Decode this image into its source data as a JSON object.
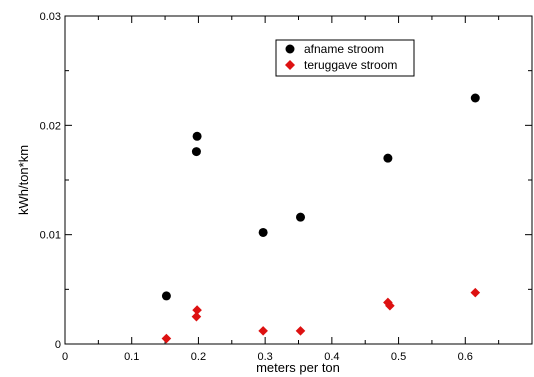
{
  "chart_data": {
    "type": "scatter",
    "xlabel": "meters per ton",
    "ylabel": "kWh/ton*km",
    "xlim": [
      0,
      0.7
    ],
    "ylim": [
      0,
      0.03
    ],
    "x_ticks": [
      "0",
      "0.1",
      "0.2",
      "0.3",
      "0.4",
      "0.5",
      "0.6"
    ],
    "y_ticks": [
      "0",
      "0.01",
      "0.02",
      "0.03"
    ],
    "legend_position": "top-right",
    "grid": false,
    "series": [
      {
        "name": "afname stroom",
        "marker": "circle",
        "color": "#000000",
        "points": [
          {
            "x": 0.152,
            "y": 0.0044
          },
          {
            "x": 0.198,
            "y": 0.019
          },
          {
            "x": 0.197,
            "y": 0.0176
          },
          {
            "x": 0.297,
            "y": 0.0102
          },
          {
            "x": 0.353,
            "y": 0.0116
          },
          {
            "x": 0.484,
            "y": 0.017
          },
          {
            "x": 0.615,
            "y": 0.0225
          }
        ]
      },
      {
        "name": "teruggave stroom",
        "marker": "diamond",
        "color": "#dd1111",
        "points": [
          {
            "x": 0.152,
            "y": 0.0005
          },
          {
            "x": 0.198,
            "y": 0.0031
          },
          {
            "x": 0.197,
            "y": 0.0025
          },
          {
            "x": 0.297,
            "y": 0.0012
          },
          {
            "x": 0.353,
            "y": 0.0012
          },
          {
            "x": 0.484,
            "y": 0.0038
          },
          {
            "x": 0.487,
            "y": 0.0035
          },
          {
            "x": 0.615,
            "y": 0.0047
          }
        ]
      }
    ]
  }
}
